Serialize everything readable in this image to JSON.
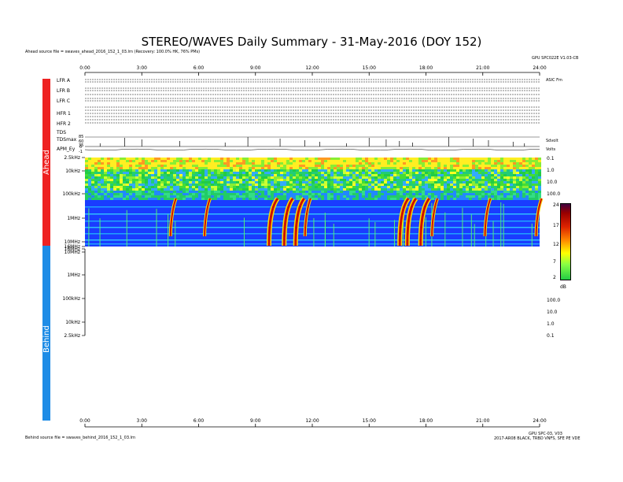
{
  "title": "STEREO/WAVES Daily Summary - 31-May-2016 (DOY 152)",
  "ahead_source": "Ahead source file = swaves_ahead_2016_152_1_03.lrn (Recovery: 100.0% HK, 76% PMs)",
  "behind_source": "Behind source file = swaves_behind_2016_152_1_03.lrn",
  "top_right_note": "GPU SPC022E V1.03-CB",
  "bottom_right_note_1": "GPU SPC-03, V03",
  "bottom_right_note_2": "2017-AR08 BLACK, TRBD VNFS, SFE PE VDE",
  "sections": {
    "ahead": "Ahead",
    "behind": "Behind"
  },
  "panel_labels": {
    "lfr_a": "LFR A",
    "lfr_b": "LFR B",
    "lfr_c": "LFR C",
    "hfr_1": "HFR 1",
    "hfr_2": "HFR 2",
    "tds": "TDS",
    "tdsmax": "TDSmax",
    "apm_ey": "APM_Ey"
  },
  "side_values": {
    "tdsmax_top": "85",
    "tdsmax_mid": "60",
    "tdsmax_bot": "35",
    "apm_top": "0",
    "apm_bot": "-1"
  },
  "right_units": {
    "lfr_a": "ASIC Fm",
    "volts": "Volts",
    "tds_units": "Sdvolt"
  },
  "x_ticks": [
    "0:00",
    "3:00",
    "6:00",
    "9:00",
    "12:00",
    "15:00",
    "18:00",
    "21:00",
    "24:00"
  ],
  "freq_labels_ahead": [
    "2.5kHz",
    "10kHz",
    "100kHz",
    "1MHz",
    "10MHz",
    "16MHz"
  ],
  "freq_labels_behind": [
    "16MHz",
    "10MHz",
    "1MHz",
    "100kHz",
    "10kHz",
    "2.5kHz"
  ],
  "wavelength_labels_ahead": [
    "0.1",
    "1.0",
    "10.0",
    "100.0"
  ],
  "wavelength_labels_behind": [
    "100.0",
    "10.0",
    "1.0",
    "0.1"
  ],
  "colors": {
    "ahead_bar": "#ee2222",
    "behind_bar": "#1e8ce6",
    "background_blue": "#1a3cff",
    "burst": "#cc1100"
  },
  "chart_data": {
    "type": "heatmap",
    "title": "STEREO/WAVES Daily Summary - 31-May-2016 (DOY 152)",
    "x_axis": {
      "unit": "hours UT",
      "range": [
        0,
        24
      ],
      "ticks": [
        "0:00",
        "3:00",
        "6:00",
        "9:00",
        "12:00",
        "15:00",
        "18:00",
        "21:00",
        "24:00"
      ]
    },
    "y_axis": {
      "scale": "log",
      "range_hz": [
        2500,
        16000000
      ],
      "ticks": [
        "2.5kHz",
        "10kHz",
        "100kHz",
        "1MHz",
        "10MHz",
        "16MHz"
      ]
    },
    "colorbar": {
      "label": "dB",
      "ticks": [
        24,
        17,
        12,
        7,
        2
      ]
    },
    "behind_panel": "no data",
    "bursts_hours": [
      4.6,
      6.4,
      9.8,
      10.6,
      11.2,
      11.7,
      16.7,
      17.1,
      17.8,
      18.4,
      21.2,
      23.9
    ]
  }
}
